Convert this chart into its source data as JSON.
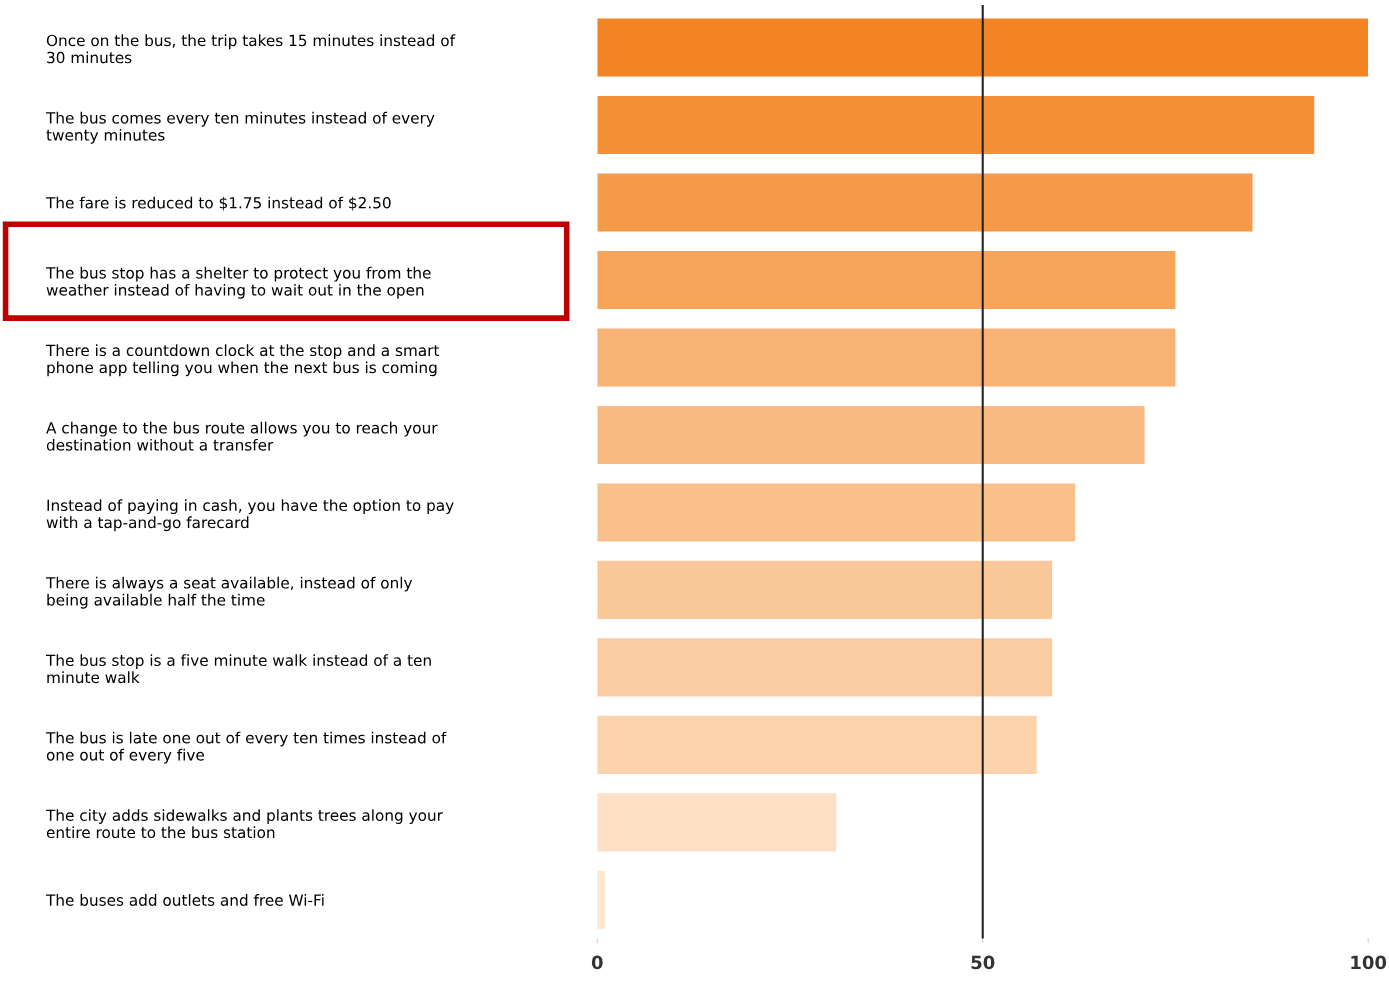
{
  "chart_data": {
    "type": "bar",
    "orientation": "horizontal",
    "categories": [
      "Once on the bus, the trip takes 15 minutes instead of 30 minutes",
      "The bus comes every ten minutes instead of every twenty minutes",
      "The fare is reduced to $1.75 instead of $2.50",
      "The bus stop has a shelter to protect you from the weather instead of having to wait out in the open",
      "There is a countdown clock at the stop and a smart phone app telling you when the next bus is coming",
      "A change to the bus route allows you to reach your destination without a transfer",
      "Instead of paying in cash, you have the option to pay with a tap-and-go farecard",
      "There is always a seat available, instead of only being available half the time",
      "The bus stop is a five minute walk instead of a ten minute walk",
      "The bus is late one out of every ten times instead of one out of every five",
      "The city adds sidewalks and plants trees along your entire route to the bus station",
      "The buses add outlets and free Wi-Fi"
    ],
    "values": [
      100,
      93,
      85,
      75,
      75,
      71,
      62,
      59,
      59,
      57,
      31,
      1
    ],
    "colors": [
      "#f28424",
      "#f48f36",
      "#f59a48",
      "#f6a55a",
      "#f8b274",
      "#f8ba80",
      "#f9c08c",
      "#fac799",
      "#fbcca1",
      "#fcd3ad",
      "#fde0c5",
      "#fde7d3"
    ],
    "xlim": [
      0,
      100
    ],
    "xticks": [
      0,
      50,
      100
    ],
    "ref_lines": [
      {
        "axis": "x",
        "value": 50,
        "color": "#222222"
      }
    ],
    "grid": false,
    "legend": false
  }
}
